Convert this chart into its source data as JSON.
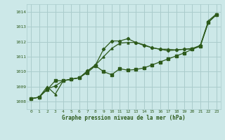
{
  "title": "Graphe pression niveau de la mer (hPa)",
  "background_color": "#cce8e8",
  "grid_color": "#aacccc",
  "line_color": "#2d5a1b",
  "xlim": [
    -0.5,
    23.5
  ],
  "ylim": [
    1007.5,
    1014.5
  ],
  "yticks": [
    1008,
    1009,
    1010,
    1011,
    1012,
    1013,
    1014
  ],
  "xticks": [
    0,
    1,
    2,
    3,
    4,
    5,
    6,
    7,
    8,
    9,
    10,
    11,
    12,
    13,
    14,
    15,
    16,
    17,
    18,
    19,
    20,
    21,
    22,
    23
  ],
  "series1_x": [
    0,
    1,
    2,
    3,
    4,
    5,
    6,
    7,
    8,
    9,
    10,
    11,
    12,
    13,
    14,
    15,
    16,
    17,
    18,
    19,
    20,
    21,
    22,
    23
  ],
  "series1_y": [
    1008.2,
    1008.3,
    1008.8,
    1009.4,
    1009.4,
    1009.5,
    1009.6,
    1009.95,
    1010.4,
    1010.0,
    1009.8,
    1010.2,
    1010.1,
    1010.15,
    1010.25,
    1010.45,
    1010.65,
    1010.85,
    1011.05,
    1011.25,
    1011.5,
    1011.7,
    1013.3,
    1013.8
  ],
  "series2_x": [
    0,
    1,
    2,
    3,
    4,
    5,
    6,
    7,
    8,
    9,
    10,
    11,
    12,
    13,
    14,
    15,
    16,
    17,
    18,
    19,
    20,
    21,
    22,
    23
  ],
  "series2_y": [
    1008.2,
    1008.3,
    1008.85,
    1009.05,
    1009.4,
    1009.5,
    1009.6,
    1010.05,
    1010.45,
    1011.5,
    1012.05,
    1012.05,
    1012.2,
    1011.95,
    1011.75,
    1011.6,
    1011.5,
    1011.4,
    1011.45,
    1011.5,
    1011.5,
    1011.75,
    1013.3,
    1013.8
  ],
  "series3_x": [
    0,
    1,
    2,
    3,
    4,
    5,
    6,
    7,
    8,
    9,
    10,
    11,
    12,
    13,
    14,
    15,
    16,
    17,
    18,
    19,
    20,
    21,
    22,
    23
  ],
  "series3_y": [
    1008.2,
    1008.3,
    1009.0,
    1008.5,
    1009.4,
    1009.5,
    1009.6,
    1010.05,
    1010.45,
    1011.0,
    1011.55,
    1011.9,
    1011.95,
    1011.95,
    1011.8,
    1011.6,
    1011.5,
    1011.5,
    1011.45,
    1011.5,
    1011.55,
    1011.75,
    1013.4,
    1013.85
  ]
}
